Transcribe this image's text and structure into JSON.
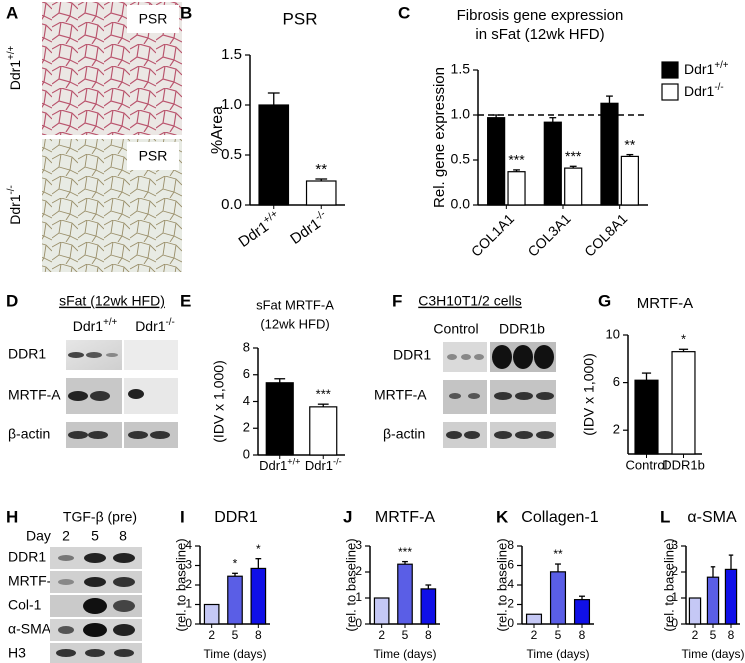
{
  "panel_A": {
    "letter": "A",
    "row_labels": [
      "Ddr1+/+",
      "Ddr1-/-"
    ],
    "image_labels": [
      "PSR",
      "PSR"
    ]
  },
  "panel_D": {
    "letter": "D",
    "header": "sFat (12wk HFD)",
    "groups": [
      "Ddr1+/+",
      "Ddr1-/-"
    ],
    "rows": [
      "DDR1",
      "MRTF-A",
      "β-actin"
    ]
  },
  "panel_F": {
    "letter": "F",
    "header": "C3H10T1/2 cells",
    "groups": [
      "Control",
      "DDR1b"
    ],
    "rows": [
      "DDR1",
      "MRTF-A",
      "β-actin"
    ]
  },
  "panel_H": {
    "letter": "H",
    "header": "TGF-β (pre)",
    "day_label": "Day",
    "days": [
      2,
      5,
      8
    ],
    "rows": [
      "DDR1",
      "MRTF-A",
      "Col-1",
      "α-SMA",
      "H3"
    ]
  },
  "chart_data": [
    {
      "type": "bar",
      "letter": "B",
      "title": "PSR",
      "ylabel": "%Area",
      "categories": [
        "Ddr1+/+",
        "Ddr1-/-"
      ],
      "values": [
        1.0,
        0.24
      ],
      "errors": [
        0.12,
        0.02
      ],
      "colors": [
        "#000000",
        "#ffffff"
      ],
      "ylim": [
        0,
        1.5
      ],
      "yticks": [
        {
          "value": 0,
          "label": "0.0"
        },
        {
          "value": 0.5,
          "label": "0.5"
        },
        {
          "value": 1,
          "label": "1.0"
        },
        {
          "value": 1.5,
          "label": "1.5"
        }
      ],
      "annotations": [
        {
          "index": 1,
          "text": "**"
        }
      ]
    },
    {
      "type": "grouped-bar",
      "letter": "C",
      "title": [
        "Fibrosis gene expression",
        "in sFat (12wk HFD)"
      ],
      "ylabel": "Rel. gene expression",
      "categories": [
        "COL1A1",
        "COL3A1",
        "COL8A1"
      ],
      "series": [
        {
          "name": "Ddr1+/+",
          "color": "#000000",
          "values": [
            0.97,
            0.92,
            1.13
          ],
          "errors": [
            0.03,
            0.05,
            0.08
          ]
        },
        {
          "name": "Ddr1-/-",
          "color": "#ffffff",
          "values": [
            0.37,
            0.41,
            0.54
          ],
          "errors": [
            0.02,
            0.02,
            0.02
          ]
        }
      ],
      "ylim": [
        0,
        1.5
      ],
      "yticks": [
        {
          "value": 0,
          "label": "0.0"
        },
        {
          "value": 0.5,
          "label": "0.5"
        },
        {
          "value": 1,
          "label": "1.0"
        },
        {
          "value": 1.5,
          "label": "1.5"
        }
      ],
      "reference_line": 1.0,
      "annotations": [
        {
          "series": 1,
          "index": 0,
          "text": "***"
        },
        {
          "series": 1,
          "index": 1,
          "text": "***"
        },
        {
          "series": 1,
          "index": 2,
          "text": "**"
        }
      ]
    },
    {
      "type": "bar",
      "letter": "E",
      "title": [
        "sFat MRTF-A",
        "(12wk  HFD)"
      ],
      "ylabel": "(IDV x 1,000)",
      "categories": [
        "Ddr1+/+",
        "Ddr1-/-"
      ],
      "values": [
        5.4,
        3.6
      ],
      "errors": [
        0.3,
        0.2
      ],
      "colors": [
        "#000000",
        "#ffffff"
      ],
      "ylim": [
        0,
        8
      ],
      "yticks": [
        0,
        2,
        4,
        6,
        8
      ],
      "annotations": [
        {
          "index": 1,
          "text": "***"
        }
      ]
    },
    {
      "type": "bar",
      "letter": "G",
      "title": "MRTF-A",
      "ylabel": "(IDV x 1,000)",
      "categories": [
        "Control",
        "DDR1b"
      ],
      "values": [
        6.2,
        8.6
      ],
      "errors": [
        0.6,
        0.2
      ],
      "colors": [
        "#000000",
        "#ffffff"
      ],
      "ylim": [
        0,
        10
      ],
      "yticks": [
        2,
        6,
        10
      ],
      "annotations": [
        {
          "index": 1,
          "text": "*"
        }
      ]
    },
    {
      "type": "bar",
      "letter": "I",
      "title": "DDR1",
      "ylabel": "(rel. to baseline)",
      "xlabel": "Time (days)",
      "categories": [
        2,
        5,
        8
      ],
      "values": [
        1,
        2.45,
        2.85
      ],
      "errors": [
        null,
        0.15,
        0.5
      ],
      "colors": [
        "#c5c8f5",
        "#5a5ee6",
        "#1010e8"
      ],
      "ylim": [
        0,
        4
      ],
      "yticks": [
        0,
        1,
        2,
        3,
        4
      ],
      "annotations": [
        {
          "index": 1,
          "text": "*"
        },
        {
          "index": 2,
          "text": "*"
        }
      ]
    },
    {
      "type": "bar",
      "letter": "J",
      "title": "MRTF-A",
      "ylabel": "(rel. to baseline)",
      "xlabel": "Time (days)",
      "categories": [
        2,
        5,
        8
      ],
      "values": [
        1,
        2.3,
        1.35
      ],
      "errors": [
        null,
        0.1,
        0.15
      ],
      "colors": [
        "#c5c8f5",
        "#5a5ee6",
        "#1010e8"
      ],
      "ylim": [
        0,
        3
      ],
      "yticks": [
        0,
        1,
        2,
        3
      ],
      "annotations": [
        {
          "index": 1,
          "text": "***"
        }
      ]
    },
    {
      "type": "bar",
      "letter": "K",
      "title": "Collagen-1",
      "ylabel": "(rel. to baseline)",
      "xlabel": "Time (days)",
      "categories": [
        2,
        5,
        8
      ],
      "values": [
        1,
        5.35,
        2.5
      ],
      "errors": [
        null,
        0.8,
        0.35
      ],
      "colors": [
        "#c5c8f5",
        "#5a5ee6",
        "#1010e8"
      ],
      "ylim": [
        0,
        8
      ],
      "yticks": [
        0,
        2,
        4,
        6,
        8
      ],
      "annotations": [
        {
          "index": 1,
          "text": "**"
        }
      ]
    },
    {
      "type": "bar",
      "letter": "L",
      "title": "α-SMA",
      "ylabel": "(rel. to baseline)",
      "xlabel": "Time (days)",
      "categories": [
        2,
        5,
        8
      ],
      "values": [
        1,
        1.8,
        2.1
      ],
      "errors": [
        null,
        0.4,
        0.55
      ],
      "colors": [
        "#c5c8f5",
        "#5a5ee6",
        "#1010e8"
      ],
      "ylim": [
        0,
        3
      ],
      "yticks": [
        0,
        1,
        2,
        3
      ]
    }
  ]
}
